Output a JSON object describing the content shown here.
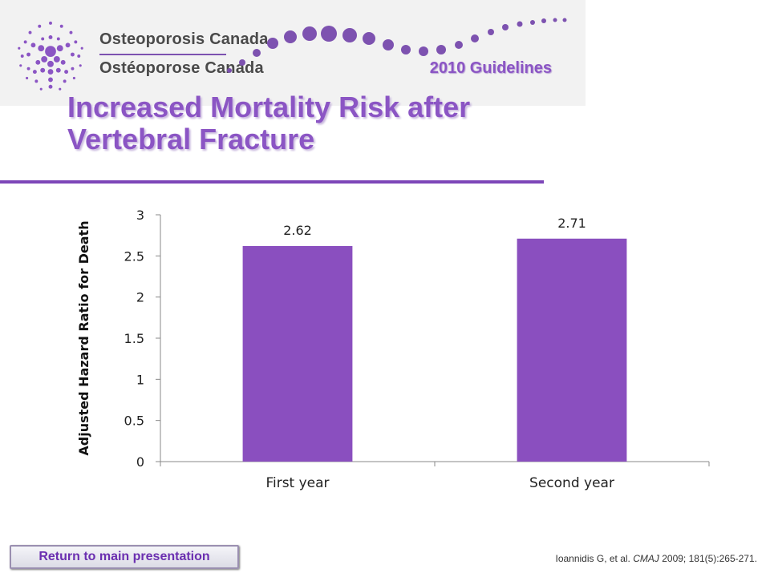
{
  "header": {
    "org_name_en": "Osteoporosis Canada",
    "org_name_fr": "Ostéoporose Canada",
    "guidelines_label": "2010 Guidelines"
  },
  "slide": {
    "title": "Increased Mortality Risk after Vertebral Fracture"
  },
  "footer": {
    "back_button_label": "Return to main presentation",
    "citation_authors": "Ioannidis G, et al.",
    "citation_journal": "CMAJ",
    "citation_details": "2009; 181(5):265-271."
  },
  "colors": {
    "accent": "#8b55c4",
    "bar": "#8a4fbf",
    "rule": "#7d46b8"
  },
  "chart_data": {
    "type": "bar",
    "categories": [
      "First year",
      "Second year"
    ],
    "values": [
      2.62,
      2.71
    ],
    "data_labels": [
      "2.62",
      "2.71"
    ],
    "ylabel": "Adjusted Hazard Ratio for Death",
    "xlabel": "",
    "ylim": [
      0,
      3
    ],
    "yticks": [
      0,
      0.5,
      1,
      1.5,
      2,
      2.5,
      3
    ],
    "ytick_labels": [
      "0",
      "0.5",
      "1",
      "1.5",
      "2",
      "2.5",
      "3"
    ],
    "grid": false,
    "legend": "none"
  }
}
